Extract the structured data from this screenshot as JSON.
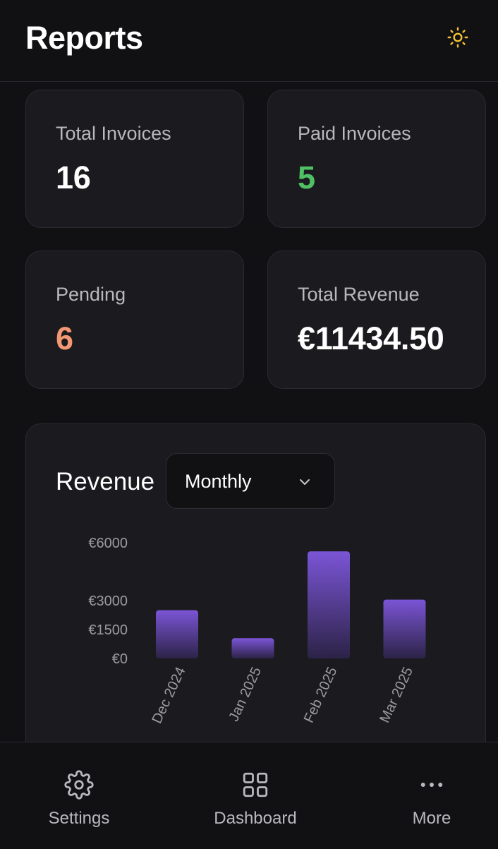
{
  "header": {
    "title": "Reports",
    "theme_icon": "sun-icon"
  },
  "stats": {
    "total_invoices": {
      "label": "Total Invoices",
      "value": "16"
    },
    "paid_invoices": {
      "label": "Paid Invoices",
      "value": "5",
      "color": "#4fc164"
    },
    "pending": {
      "label": "Pending",
      "value": "6",
      "color": "#f39873"
    },
    "total_revenue": {
      "label": "Total Revenue",
      "value": "€11434.50"
    }
  },
  "revenue": {
    "title": "Revenue",
    "period_select": {
      "value": "Monthly",
      "icon": "chevron-down-icon"
    }
  },
  "chart_data": {
    "type": "bar",
    "categories": [
      "Dec 2024",
      "Jan 2025",
      "Feb 2025",
      "Mar 2025"
    ],
    "values": [
      2500,
      1050,
      5550,
      3050
    ],
    "y_ticks": [
      0,
      1500,
      3000,
      6000
    ],
    "y_tick_labels": [
      "€0",
      "€1500",
      "€3000",
      "€6000"
    ],
    "ylim": [
      0,
      6000
    ],
    "grid": false,
    "bar_color": "#7b55d6",
    "title": "",
    "xlabel": "",
    "ylabel": ""
  },
  "bottom_nav": {
    "items": [
      {
        "label": "Settings",
        "icon": "gear-icon"
      },
      {
        "label": "Dashboard",
        "icon": "grid-icon"
      },
      {
        "label": "More",
        "icon": "more-horizontal-icon"
      }
    ]
  },
  "colors": {
    "background": "#111114",
    "card": "#1b1b1f",
    "accent_yellow": "#f2c234"
  }
}
